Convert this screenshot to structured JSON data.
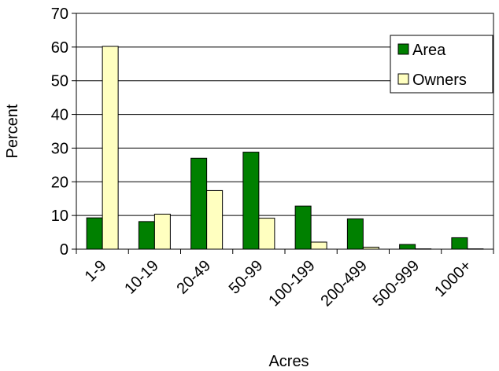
{
  "chart_data": {
    "type": "bar",
    "title": "",
    "xlabel": "Acres",
    "ylabel": "Percent",
    "ylim": [
      0,
      70
    ],
    "yticks": [
      0,
      10,
      20,
      30,
      40,
      50,
      60,
      70
    ],
    "grid": true,
    "legend_position": "top-right",
    "categories": [
      "1-9",
      "10-19",
      "20-49",
      "50-99",
      "100-199",
      "200-499",
      "500-999",
      "1000+"
    ],
    "series": [
      {
        "name": "Area",
        "color": "#008000",
        "values": [
          9.3,
          8.2,
          27.0,
          28.8,
          12.8,
          9.0,
          1.4,
          3.4
        ]
      },
      {
        "name": "Owners",
        "color": "#FFFFC0",
        "values": [
          60.2,
          10.4,
          17.4,
          9.2,
          2.1,
          0.6,
          0.1,
          0.1
        ]
      }
    ]
  }
}
